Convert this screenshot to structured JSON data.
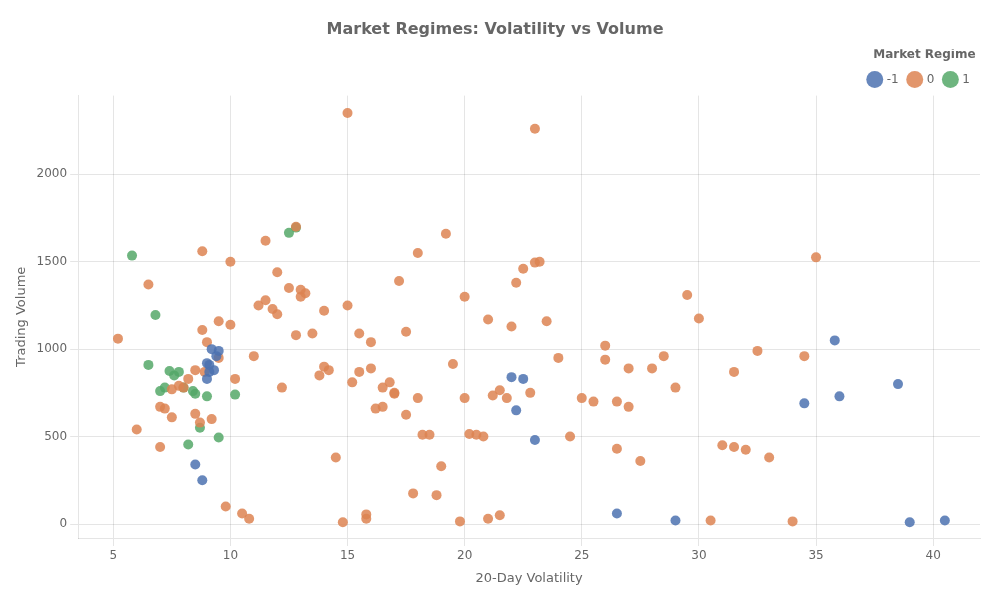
{
  "chart_data": {
    "type": "scatter",
    "title": "Market Regimes: Volatility vs Volume",
    "xlabel": "20-Day Volatility",
    "ylabel": "Trading Volume",
    "legend_title": "Market Regime",
    "legend": "upper right",
    "grid": true,
    "marker": "circle",
    "xlim": [
      3.5,
      42
    ],
    "ylim": [
      -80,
      2450
    ],
    "xticks": [
      5,
      10,
      15,
      20,
      25,
      30,
      35,
      40
    ],
    "yticks": [
      0,
      500,
      1000,
      1500,
      2000
    ],
    "series": [
      {
        "name": "-1",
        "color": "#4c72b0",
        "x": [
          8.5,
          8.8,
          9.0,
          9.1,
          9.2,
          9.3,
          9.4,
          9.5,
          9.1,
          9.0,
          22.0,
          22.2,
          22.5,
          23.0,
          26.5,
          29.0,
          34.5,
          35.8,
          36.0,
          38.5,
          39.0,
          40.5
        ],
        "values": [
          340,
          250,
          920,
          910,
          1000,
          880,
          960,
          990,
          870,
          830,
          840,
          650,
          830,
          480,
          60,
          20,
          690,
          1050,
          730,
          800,
          10,
          20
        ]
      },
      {
        "name": "0",
        "color": "#dd8452",
        "x": [
          5.2,
          6.0,
          6.5,
          7.0,
          7.0,
          7.2,
          7.5,
          7.5,
          7.8,
          8.0,
          8.2,
          8.5,
          8.5,
          8.7,
          8.8,
          8.8,
          8.9,
          9.0,
          9.2,
          9.5,
          9.5,
          9.8,
          10.0,
          10.0,
          10.2,
          10.5,
          10.8,
          11.0,
          11.2,
          11.5,
          11.5,
          11.8,
          12.0,
          12.0,
          12.2,
          12.5,
          12.8,
          12.8,
          13.0,
          13.0,
          13.2,
          13.5,
          13.8,
          14.0,
          14.0,
          14.2,
          14.5,
          14.8,
          15.0,
          15.0,
          15.2,
          15.5,
          15.5,
          15.8,
          15.8,
          16.0,
          16.0,
          16.2,
          16.5,
          16.5,
          16.8,
          17.0,
          17.0,
          17.2,
          17.5,
          17.5,
          17.8,
          18.0,
          18.0,
          18.2,
          18.5,
          18.8,
          19.0,
          19.2,
          19.5,
          19.8,
          20.0,
          20.0,
          20.2,
          20.5,
          20.8,
          21.0,
          21.0,
          21.2,
          21.5,
          21.5,
          21.8,
          22.0,
          22.2,
          22.5,
          22.8,
          23.0,
          23.0,
          23.2,
          23.5,
          24.0,
          24.5,
          25.0,
          25.5,
          26.0,
          26.0,
          26.5,
          26.5,
          27.0,
          27.0,
          27.5,
          28.0,
          28.5,
          29.0,
          29.5,
          30.0,
          30.5,
          31.0,
          31.5,
          31.5,
          32.0,
          32.5,
          33.0,
          34.0,
          34.5,
          35.0
        ],
        "values": [
          1060,
          540,
          1370,
          440,
          670,
          660,
          610,
          770,
          790,
          780,
          830,
          880,
          630,
          580,
          1560,
          1110,
          870,
          1040,
          600,
          950,
          1160,
          100,
          1500,
          1140,
          830,
          60,
          30,
          960,
          1250,
          1280,
          1620,
          1230,
          1440,
          1200,
          780,
          1350,
          1080,
          1700,
          1340,
          1300,
          1320,
          1090,
          850,
          1220,
          900,
          880,
          380,
          10,
          2350,
          1250,
          810,
          870,
          1090,
          30,
          55,
          890,
          1040,
          660,
          670,
          780,
          810,
          745,
          750,
          1390,
          1100,
          625,
          175,
          1550,
          720,
          510,
          510,
          165,
          330,
          1660,
          915,
          15,
          1300,
          720,
          515,
          510,
          500,
          1170,
          30,
          735,
          765,
          50,
          720,
          1130,
          1380,
          1460,
          750,
          2260,
          1495,
          1500,
          1160,
          950,
          500,
          720,
          700,
          1020,
          940,
          700,
          430,
          890,
          670,
          360,
          890,
          960,
          780,
          1310,
          1175,
          20,
          450,
          870,
          440,
          425,
          990,
          380,
          15,
          960,
          1525
        ]
      },
      {
        "name": "1",
        "color": "#55a868",
        "x": [
          5.8,
          6.5,
          6.8,
          7.0,
          7.2,
          7.4,
          7.6,
          7.8,
          8.0,
          8.2,
          8.4,
          8.5,
          8.7,
          9.0,
          9.5,
          10.2,
          12.5,
          12.8
        ],
        "values": [
          1535,
          910,
          1195,
          760,
          780,
          875,
          850,
          870,
          780,
          455,
          760,
          745,
          550,
          730,
          495,
          740,
          1665,
          1695
        ]
      }
    ]
  }
}
